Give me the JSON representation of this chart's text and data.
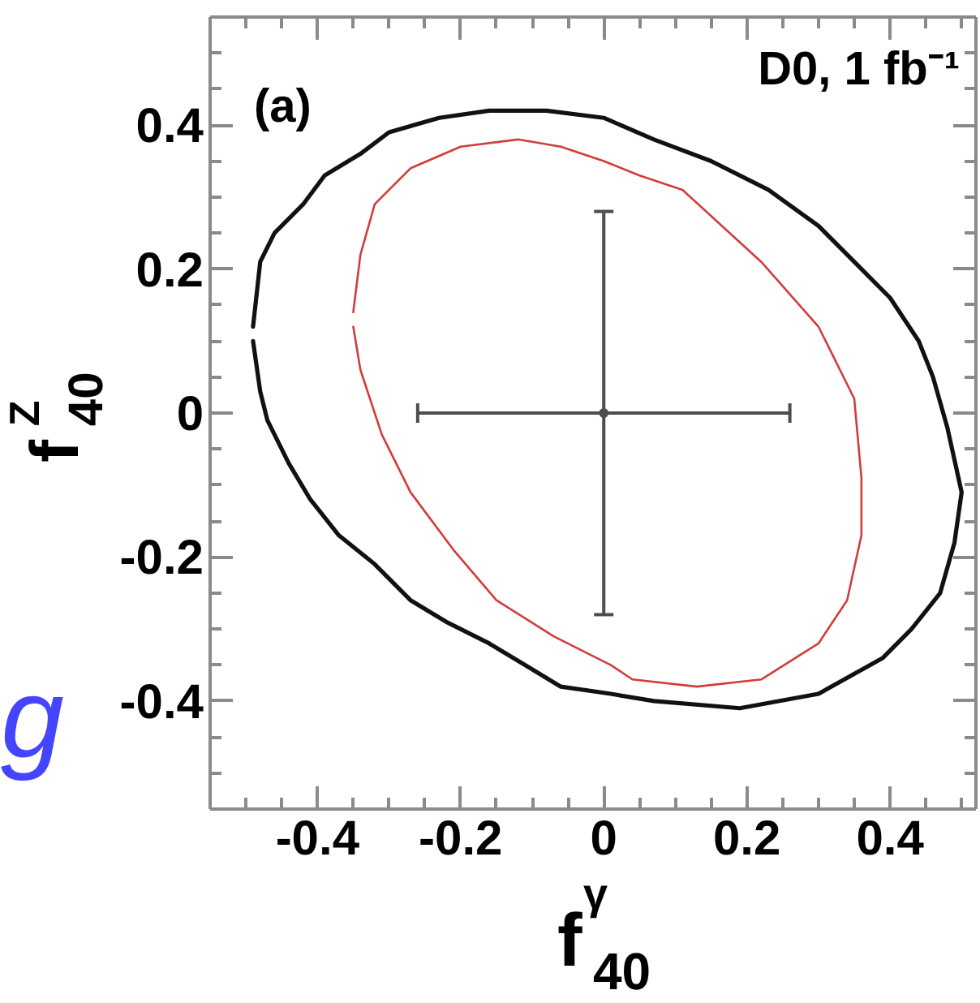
{
  "chart_data": {
    "type": "line",
    "xlabel": "f$^{γ}$$_{40}$",
    "ylabel": "f$^{Z}$$_{40}$",
    "annotations": [
      "(a)",
      "D0, 1 fb⁻¹",
      "g"
    ],
    "xlim": [
      -0.55,
      0.52
    ],
    "ylim": [
      -0.55,
      0.55
    ],
    "xticks": [
      -0.4,
      -0.2,
      0,
      0.2,
      0.4
    ],
    "yticks": [
      -0.4,
      -0.2,
      0,
      0.2,
      0.4
    ],
    "series": [
      {
        "color": "#111111",
        "x": [
          -0.49,
          -0.48,
          -0.46,
          -0.42,
          -0.39,
          -0.34,
          -0.3,
          -0.23,
          -0.16,
          -0.08,
          0.0,
          0.07,
          0.15,
          0.23,
          0.3,
          0.35,
          0.4,
          0.44,
          0.46,
          0.48,
          0.5,
          0.49,
          0.47,
          0.43,
          0.39,
          0.3,
          0.19,
          0.07,
          0.01,
          -0.06,
          -0.11,
          -0.16,
          -0.22,
          -0.27,
          -0.32,
          -0.37,
          -0.41,
          -0.44,
          -0.47,
          -0.48,
          -0.49
        ],
        "values": [
          0.12,
          0.21,
          0.25,
          0.29,
          0.33,
          0.36,
          0.39,
          0.41,
          0.42,
          0.42,
          0.41,
          0.38,
          0.35,
          0.31,
          0.26,
          0.21,
          0.16,
          0.1,
          0.05,
          -0.02,
          -0.11,
          -0.18,
          -0.25,
          -0.3,
          -0.34,
          -0.39,
          -0.41,
          -0.4,
          -0.39,
          -0.38,
          -0.35,
          -0.32,
          -0.29,
          -0.26,
          -0.21,
          -0.17,
          -0.12,
          -0.07,
          -0.01,
          0.03,
          0.1
        ]
      },
      {
        "color": "#d23c3c",
        "x": [
          -0.35,
          -0.34,
          -0.32,
          -0.27,
          -0.2,
          -0.12,
          -0.06,
          0.0,
          0.05,
          0.11,
          0.22,
          0.3,
          0.35,
          0.36,
          0.36,
          0.34,
          0.3,
          0.22,
          0.13,
          0.04,
          0.01,
          -0.07,
          -0.15,
          -0.21,
          -0.27,
          -0.31,
          -0.34,
          -0.35
        ],
        "values": [
          0.14,
          0.22,
          0.29,
          0.34,
          0.37,
          0.38,
          0.37,
          0.35,
          0.33,
          0.31,
          0.21,
          0.12,
          0.02,
          -0.09,
          -0.17,
          -0.26,
          -0.32,
          -0.37,
          -0.38,
          -0.37,
          -0.35,
          -0.31,
          -0.26,
          -0.19,
          -0.11,
          -0.03,
          0.06,
          0.12
        ]
      },
      {
        "type": "scatter",
        "marker": "circle",
        "color": "#4d4d4d",
        "x": [
          0
        ],
        "values": [
          0
        ],
        "errors": [
          0.28
        ],
        "xerrors": [
          0.26
        ]
      }
    ]
  }
}
